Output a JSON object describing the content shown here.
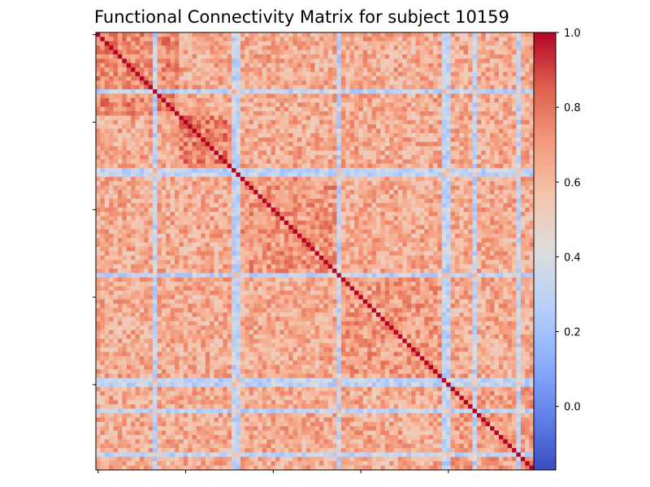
{
  "chart_data": {
    "type": "heatmap",
    "title": "Functional Connectivity Matrix for subject 10159",
    "matrix_size": 100,
    "colormap": "coolwarm",
    "colorbar": {
      "vmin": -0.17,
      "vmax": 1.0,
      "ticks": [
        0.0,
        0.2,
        0.4,
        0.6,
        0.8,
        1.0
      ],
      "tick_labels": [
        "0.0",
        "0.2",
        "0.4",
        "0.6",
        "0.8",
        "1.0"
      ]
    },
    "diagonal_value": 1.0,
    "background_mean": 0.64,
    "low_connectivity_nodes": [
      13,
      31,
      32,
      55,
      79,
      80,
      86,
      96
    ],
    "elevated_blocks": [
      {
        "rows": [
          0,
          18
        ],
        "cols": [
          0,
          18
        ],
        "mean": 0.74
      },
      {
        "rows": [
          19,
          31
        ],
        "cols": [
          19,
          31
        ],
        "mean": 0.76
      },
      {
        "rows": [
          32,
          54
        ],
        "cols": [
          32,
          54
        ],
        "mean": 0.71
      },
      {
        "rows": [
          55,
          78
        ],
        "cols": [
          55,
          78
        ],
        "mean": 0.69
      },
      {
        "rows": [
          79,
          99
        ],
        "cols": [
          79,
          99
        ],
        "mean": 0.68
      }
    ],
    "x_ticks": [
      0,
      20,
      40,
      60,
      80
    ],
    "y_ticks": [
      0,
      20,
      40,
      60,
      80
    ],
    "xlabel": "",
    "ylabel": "",
    "grid": false
  }
}
